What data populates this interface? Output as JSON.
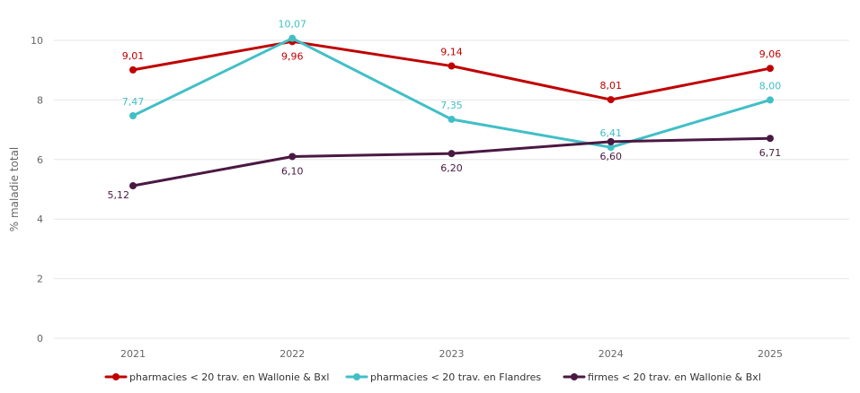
{
  "chart_data": {
    "type": "line",
    "title": "",
    "xlabel": "",
    "ylabel": "% maladie total",
    "ylim": [
      0,
      10
    ],
    "yticks": [
      0,
      2,
      4,
      6,
      8,
      10
    ],
    "grid": true,
    "legend_position": "bottom",
    "categories": [
      "2021",
      "2022",
      "2023",
      "2024",
      "2025"
    ],
    "series": [
      {
        "name": "pharmacies < 20 trav. en Wallonie & Bxl",
        "color": "#c00000",
        "values": [
          9.01,
          9.96,
          9.14,
          8.01,
          9.06
        ],
        "labels": [
          "9,01",
          "9,96",
          "9,14",
          "8,01",
          "9,06"
        ],
        "label_side": [
          "above",
          "below",
          "above",
          "above",
          "above"
        ]
      },
      {
        "name": "pharmacies < 20 trav. en Flandres",
        "color": "#41bfc7",
        "values": [
          7.47,
          10.07,
          7.35,
          6.41,
          8.0
        ],
        "labels": [
          "7,47",
          "10,07",
          "7,35",
          "6,41",
          "8,00"
        ],
        "label_side": [
          "above",
          "above",
          "above",
          "above",
          "above"
        ]
      },
      {
        "name": "firmes < 20 trav. en Wallonie & Bxl",
        "color": "#4a1942",
        "values": [
          5.12,
          6.1,
          6.2,
          6.6,
          6.71
        ],
        "labels": [
          "5,12",
          "6,10",
          "6,20",
          "6,60",
          "6,71"
        ],
        "label_side": [
          "below-left",
          "below",
          "below",
          "below",
          "below"
        ]
      }
    ]
  }
}
